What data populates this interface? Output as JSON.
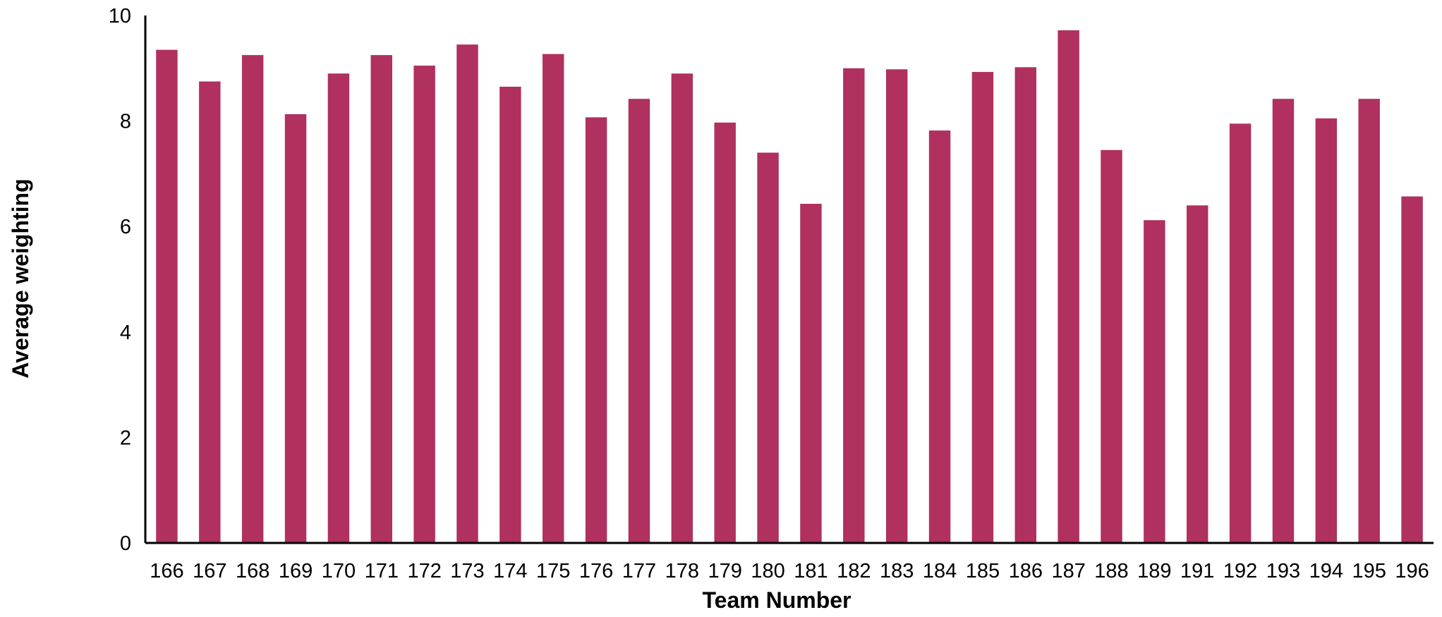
{
  "chart_data": {
    "type": "bar",
    "title": "",
    "xlabel": "Team Number",
    "ylabel": "Average weighting",
    "categories": [
      "166",
      "167",
      "168",
      "169",
      "170",
      "171",
      "172",
      "173",
      "174",
      "175",
      "176",
      "177",
      "178",
      "179",
      "180",
      "181",
      "182",
      "183",
      "184",
      "185",
      "186",
      "187",
      "188",
      "189",
      "191",
      "192",
      "193",
      "194",
      "195",
      "196"
    ],
    "values": [
      9.35,
      8.75,
      9.25,
      8.13,
      8.9,
      9.25,
      9.05,
      9.45,
      8.65,
      9.27,
      8.07,
      8.42,
      8.9,
      7.97,
      7.4,
      6.43,
      9.0,
      8.98,
      7.82,
      8.93,
      9.02,
      9.72,
      7.45,
      6.12,
      6.4,
      7.95,
      8.42,
      8.05,
      8.42,
      6.57
    ],
    "ylim": [
      0,
      10
    ],
    "yticks": [
      "0",
      "2",
      "4",
      "6",
      "8",
      "10"
    ],
    "grid": false,
    "legend": "none",
    "bar_color": "#B03060"
  }
}
